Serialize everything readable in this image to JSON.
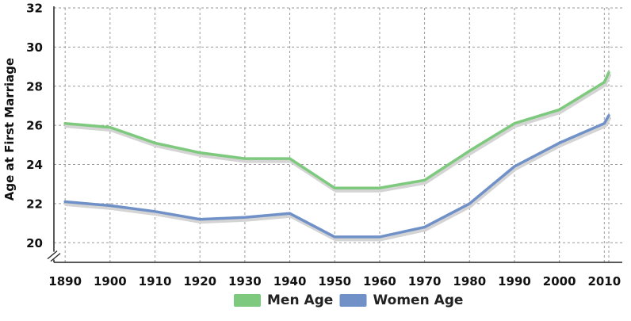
{
  "chart_data": {
    "type": "line",
    "title": "",
    "xlabel": "",
    "ylabel": "Age at First Marriage",
    "x": [
      1890,
      1900,
      1910,
      1920,
      1930,
      1940,
      1950,
      1960,
      1970,
      1980,
      1990,
      2000,
      2010,
      2011
    ],
    "x_tick_labels": [
      "1890",
      "1900",
      "1910",
      "1920",
      "1930",
      "1940",
      "1950",
      "1960",
      "1970",
      "1980",
      "1990",
      "2000",
      "2010"
    ],
    "y_tick_labels": [
      "20",
      "22",
      "24",
      "26",
      "28",
      "30",
      "32"
    ],
    "ylim": [
      19,
      32
    ],
    "y_axis_break": true,
    "grid": true,
    "legend_position": "bottom-center",
    "series": [
      {
        "name": "Men Age",
        "color": "#7dc97d",
        "values": [
          26.1,
          25.9,
          25.1,
          24.6,
          24.3,
          24.3,
          22.8,
          22.8,
          23.2,
          24.7,
          26.1,
          26.8,
          28.2,
          28.7
        ]
      },
      {
        "name": "Women Age",
        "color": "#7090c8",
        "values": [
          22.1,
          21.9,
          21.6,
          21.2,
          21.3,
          21.5,
          20.3,
          20.3,
          20.8,
          22.0,
          23.9,
          25.1,
          26.1,
          26.5
        ]
      }
    ]
  }
}
